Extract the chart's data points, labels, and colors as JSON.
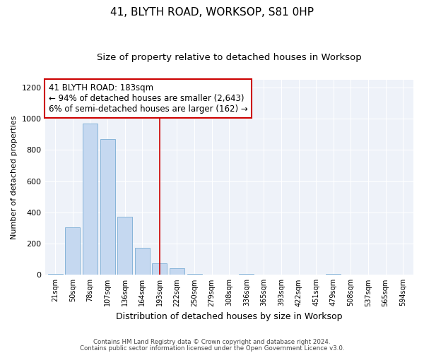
{
  "title": "41, BLYTH ROAD, WORKSOP, S81 0HP",
  "subtitle": "Size of property relative to detached houses in Worksop",
  "xlabel": "Distribution of detached houses by size in Worksop",
  "ylabel": "Number of detached properties",
  "categories": [
    "21sqm",
    "50sqm",
    "78sqm",
    "107sqm",
    "136sqm",
    "164sqm",
    "193sqm",
    "222sqm",
    "250sqm",
    "279sqm",
    "308sqm",
    "336sqm",
    "365sqm",
    "393sqm",
    "422sqm",
    "451sqm",
    "479sqm",
    "508sqm",
    "537sqm",
    "565sqm",
    "594sqm"
  ],
  "values": [
    5,
    305,
    970,
    870,
    370,
    175,
    75,
    40,
    5,
    0,
    0,
    5,
    0,
    0,
    0,
    0,
    5,
    0,
    0,
    0,
    0
  ],
  "bar_color": "#c5d8f0",
  "bar_edge_color": "#7aadd4",
  "vline_x_index": 6,
  "vline_color": "#cc0000",
  "annotation_text": "41 BLYTH ROAD: 183sqm\n← 94% of detached houses are smaller (2,643)\n6% of semi-detached houses are larger (162) →",
  "annotation_box_color": "#cc0000",
  "ylim": [
    0,
    1250
  ],
  "yticks": [
    0,
    200,
    400,
    600,
    800,
    1000,
    1200
  ],
  "footer1": "Contains HM Land Registry data © Crown copyright and database right 2024.",
  "footer2": "Contains public sector information licensed under the Open Government Licence v3.0.",
  "bg_color": "#eef2f9",
  "title_fontsize": 11,
  "subtitle_fontsize": 9.5,
  "ann_fontsize": 8.5,
  "ylabel_fontsize": 8,
  "xlabel_fontsize": 9
}
